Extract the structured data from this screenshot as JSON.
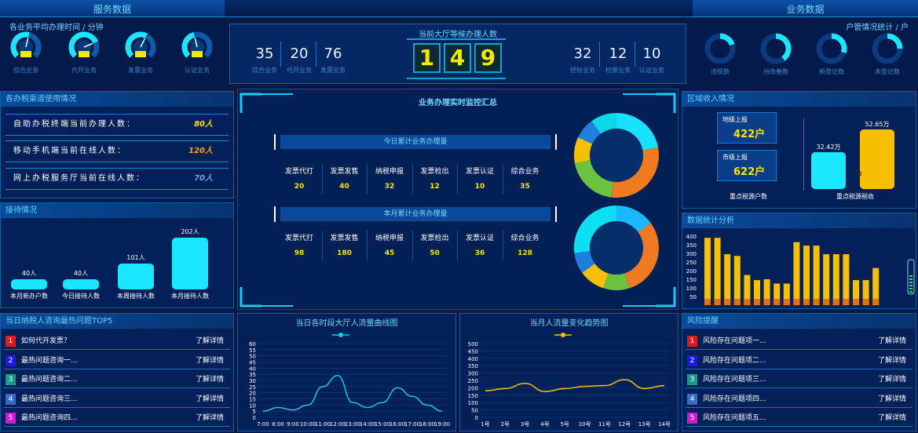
{
  "header": {
    "left_title": "服务数据",
    "right_title": "业务数据"
  },
  "avg_time": {
    "title": "各业务平均办理时间 / 分钟",
    "gauges": [
      {
        "label": "综合业务",
        "level": 0.55
      },
      {
        "label": "代开业务",
        "level": 0.75
      },
      {
        "label": "发票业务",
        "level": 0.6
      },
      {
        "label": "认证业务",
        "level": 0.45
      }
    ]
  },
  "waiting": {
    "title": "当前大厅等候办理人数",
    "left_stats": [
      {
        "value": "35",
        "label": "综合业务"
      },
      {
        "value": "20",
        "label": "代开业务"
      },
      {
        "value": "76",
        "label": "发票业务"
      }
    ],
    "digits": [
      "1",
      "4",
      "9"
    ],
    "right_stats": [
      {
        "value": "32",
        "label": "控标业务"
      },
      {
        "value": "12",
        "label": "检察业务"
      },
      {
        "value": "10",
        "label": "认证业务"
      }
    ]
  },
  "household": {
    "title": "户管情况统计 / 户",
    "rings": [
      {
        "label": "违规数",
        "level": 0.2
      },
      {
        "label": "待改善数",
        "level": 0.4
      },
      {
        "label": "新登记数",
        "level": 0.3
      },
      {
        "label": "未登记数",
        "level": 0.25
      }
    ]
  },
  "channels": {
    "title": "各办税渠道使用情况",
    "rows": [
      {
        "label": "自助办税终端当前办理人数：",
        "value": "80人",
        "color": "#f6e800"
      },
      {
        "label": "移动手机端当前在线人数：",
        "value": "120人",
        "color": "#f6a800"
      },
      {
        "label": "网上办税服务厅当前在线人数：",
        "value": "70人",
        "color": "#6fa0e8"
      }
    ]
  },
  "reception": {
    "title": "接待情况",
    "bars": [
      {
        "label": "本月新办户数",
        "value_label": "40人",
        "value": 40
      },
      {
        "label": "今日接待人数",
        "value_label": "40人",
        "value": 40
      },
      {
        "label": "本周接待人数",
        "value_label": "101人",
        "value": 101
      },
      {
        "label": "本月接待人数",
        "value_label": "202人",
        "value": 202
      }
    ]
  },
  "monitor": {
    "title": "业务办理实时监控汇总",
    "today": {
      "banner": "今日累计业务办理量",
      "headers": [
        "发票代打",
        "发票发售",
        "纳税申报",
        "发票检出",
        "发票认证",
        "综合业务"
      ],
      "values": [
        "20",
        "40",
        "32",
        "12",
        "10",
        "35"
      ],
      "donut": [
        {
          "value": 22,
          "color": "#1ae0ff"
        },
        {
          "value": 30,
          "color": "#f07a1f"
        },
        {
          "value": 20,
          "color": "#6cc340"
        },
        {
          "value": 10,
          "color": "#f6c000"
        },
        {
          "value": 8,
          "color": "#1d7fe0"
        },
        {
          "value": 10,
          "color": "#0bd9e8"
        }
      ]
    },
    "month": {
      "banner": "本月累计业务办理量",
      "headers": [
        "发票代打",
        "发票发售",
        "纳税申报",
        "发票检出",
        "发票认证",
        "综合业务"
      ],
      "values": [
        "98",
        "180",
        "45",
        "50",
        "36",
        "128"
      ],
      "donut": [
        {
          "value": 15,
          "color": "#1ab8ff"
        },
        {
          "value": 30,
          "color": "#f07a1f"
        },
        {
          "value": 10,
          "color": "#6cc340"
        },
        {
          "value": 10,
          "color": "#f6c000"
        },
        {
          "value": 8,
          "color": "#1d7fe0"
        },
        {
          "value": 27,
          "color": "#0be0f0"
        }
      ]
    }
  },
  "region_income": {
    "title": "区域收入情况",
    "boxes": [
      {
        "label": "地级上报",
        "value": "422户"
      },
      {
        "label": "市级上报",
        "value": "622户"
      }
    ],
    "left_caption": "重点税源户数",
    "right_caption": "重点税源税收",
    "bars": [
      {
        "value_label": "32.42万",
        "value": 32.42,
        "color": "#1ae8ff"
      },
      {
        "value_label": "52.65万",
        "value": 52.65,
        "color": "#f6c000"
      }
    ],
    "inner_note": "收"
  },
  "stats_analysis": {
    "title": "数据统计分析",
    "chart_data": {
      "type": "bar",
      "ylim": [
        0,
        400
      ],
      "yticks": [
        "400",
        "350",
        "300",
        "250",
        "200",
        "150",
        "100",
        "50"
      ],
      "values": [
        390,
        390,
        295,
        285,
        175,
        145,
        150,
        125,
        125,
        365,
        345,
        345,
        295,
        295,
        295,
        145,
        145,
        215
      ],
      "bar_color": "#f6c000",
      "base_color": "#e0701a"
    }
  },
  "top5": {
    "title": "当日纳税人咨询最热问题TOP5",
    "items": [
      {
        "num": "1",
        "text": "如何代开发票？",
        "link": "了解详情",
        "color": "#e01a1a"
      },
      {
        "num": "2",
        "text": "最热问题咨询一...",
        "link": "了解详情",
        "color": "#1a1ae0"
      },
      {
        "num": "3",
        "text": "最热问题咨询二...",
        "link": "了解详情",
        "color": "#1a9a8a"
      },
      {
        "num": "4",
        "text": "最热问题咨询三...",
        "link": "了解详情",
        "color": "#3a6ac8"
      },
      {
        "num": "5",
        "text": "最热问题咨询四...",
        "link": "了解详情",
        "color": "#d01ad0"
      }
    ]
  },
  "hourly_flow": {
    "title": "当日各时段大厅人流量曲线图",
    "chart_data": {
      "type": "line",
      "x": [
        "7:00",
        "8:00",
        "9:00",
        "10:00",
        "11:00",
        "12:00",
        "13:00",
        "14:00",
        "15:00",
        "16:00",
        "17:00",
        "18:00",
        "19:00"
      ],
      "y": [
        5,
        8,
        6,
        10,
        25,
        34,
        12,
        8,
        12,
        24,
        17,
        10,
        5
      ],
      "ylim": [
        0,
        60
      ],
      "yticks": [
        "60",
        "55",
        "50",
        "45",
        "40",
        "35",
        "30",
        "25",
        "20",
        "15",
        "10",
        "5",
        "0"
      ],
      "line_color": "#19c8e8"
    }
  },
  "monthly_flow": {
    "title": "当月人流量变化趋势图",
    "chart_data": {
      "type": "line",
      "x": [
        "1号",
        "2号",
        "3号",
        "4号",
        "5号",
        "10号",
        "11号",
        "12号",
        "13号",
        "14号"
      ],
      "y": [
        180,
        195,
        230,
        175,
        195,
        210,
        215,
        255,
        195,
        215
      ],
      "ylim": [
        0,
        500
      ],
      "yticks": [
        "500",
        "450",
        "400",
        "350",
        "300",
        "250",
        "200",
        "150",
        "100",
        "50",
        "0"
      ],
      "line_color": "#f6c000"
    }
  },
  "risk": {
    "title": "风险提醒",
    "items": [
      {
        "num": "1",
        "text": "风险存在问题项一...",
        "link": "了解详情",
        "color": "#e01a1a"
      },
      {
        "num": "2",
        "text": "风险存在问题项二...",
        "link": "了解详情",
        "color": "#1a1ae0"
      },
      {
        "num": "3",
        "text": "风险存在问题项三...",
        "link": "了解详情",
        "color": "#1a9a8a"
      },
      {
        "num": "4",
        "text": "风险存在问题项四...",
        "link": "了解详情",
        "color": "#3a6ac8"
      },
      {
        "num": "5",
        "text": "风险存在问题项五...",
        "link": "了解详情",
        "color": "#d01ad0"
      }
    ]
  }
}
